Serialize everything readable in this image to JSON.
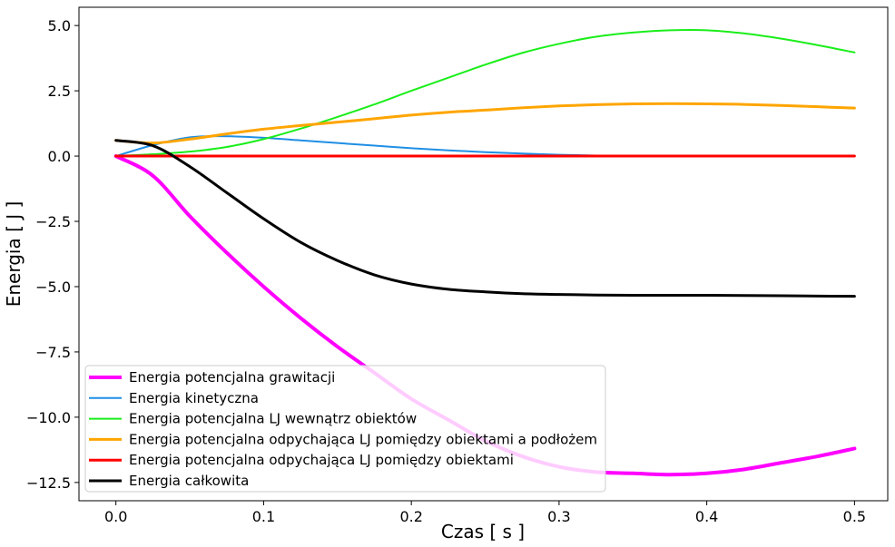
{
  "chart_data": {
    "type": "line",
    "title": "",
    "xlabel": "Czas [ s ]",
    "ylabel": "Energia [ J ]",
    "xlim": [
      -0.025,
      0.5225
    ],
    "ylim": [
      -13.2,
      5.7
    ],
    "xticks": [
      0.0,
      0.1,
      0.2,
      0.3,
      0.4,
      0.5
    ],
    "xtick_labels": [
      "0.0",
      "0.1",
      "0.2",
      "0.3",
      "0.4",
      "0.5"
    ],
    "yticks": [
      5.0,
      2.5,
      0.0,
      -2.5,
      -5.0,
      -7.5,
      -10.0,
      -12.5
    ],
    "ytick_labels": [
      "5.0",
      "2.5",
      "0.0",
      "−2.5",
      "−5.0",
      "−7.5",
      "−10.0",
      "−12.5"
    ],
    "grid": false,
    "legend_position": "lower-left",
    "x": [
      0.0,
      0.025,
      0.05,
      0.075,
      0.1,
      0.125,
      0.15,
      0.175,
      0.2,
      0.225,
      0.25,
      0.275,
      0.3,
      0.325,
      0.35,
      0.375,
      0.4,
      0.425,
      0.45,
      0.475,
      0.5
    ],
    "series": [
      {
        "name": "Energia potencjalna grawitacji",
        "color": "#ff00ff",
        "width": 4,
        "values": [
          0.0,
          -0.75,
          -2.3,
          -3.7,
          -5.0,
          -6.2,
          -7.3,
          -8.3,
          -9.3,
          -10.1,
          -10.9,
          -11.5,
          -11.9,
          -12.1,
          -12.15,
          -12.2,
          -12.15,
          -12.0,
          -11.75,
          -11.5,
          -11.2
        ]
      },
      {
        "name": "Energia kinetyczna",
        "color": "#1f8fe5",
        "width": 2,
        "values": [
          0.0,
          0.42,
          0.72,
          0.76,
          0.7,
          0.6,
          0.5,
          0.4,
          0.3,
          0.22,
          0.15,
          0.1,
          0.05,
          0.02,
          0.0,
          0.0,
          0.0,
          0.0,
          0.0,
          0.0,
          0.0
        ]
      },
      {
        "name": "Energia potencjalna LJ wewnątrz obiektów",
        "color": "#1aee1a",
        "width": 2,
        "values": [
          0.0,
          0.07,
          0.17,
          0.35,
          0.65,
          1.05,
          1.5,
          1.98,
          2.5,
          3.0,
          3.5,
          3.95,
          4.3,
          4.57,
          4.73,
          4.82,
          4.82,
          4.7,
          4.5,
          4.25,
          3.97
        ]
      },
      {
        "name": "Energia potencjalna odpychająca LJ pomiędzy obiektami a podłożem",
        "color": "#ffa500",
        "width": 3,
        "values": [
          0.6,
          0.5,
          0.65,
          0.85,
          1.03,
          1.17,
          1.3,
          1.43,
          1.57,
          1.68,
          1.76,
          1.85,
          1.92,
          1.97,
          2.0,
          2.01,
          2.0,
          1.98,
          1.94,
          1.89,
          1.84
        ]
      },
      {
        "name": "Energia potencjalna odpychająca LJ pomiędzy obiektami",
        "color": "#ff0000",
        "width": 3,
        "values": [
          0.0,
          0.0,
          0.0,
          0.0,
          0.0,
          0.0,
          0.0,
          0.0,
          0.0,
          0.0,
          0.0,
          0.0,
          0.0,
          0.0,
          0.0,
          0.0,
          0.0,
          0.0,
          0.0,
          0.0,
          0.0
        ]
      },
      {
        "name": "Energia całkowita",
        "color": "#000000",
        "width": 3,
        "values": [
          0.6,
          0.4,
          -0.4,
          -1.4,
          -2.4,
          -3.3,
          -4.0,
          -4.55,
          -4.9,
          -5.1,
          -5.2,
          -5.27,
          -5.3,
          -5.32,
          -5.33,
          -5.33,
          -5.33,
          -5.34,
          -5.35,
          -5.36,
          -5.37
        ]
      }
    ]
  }
}
